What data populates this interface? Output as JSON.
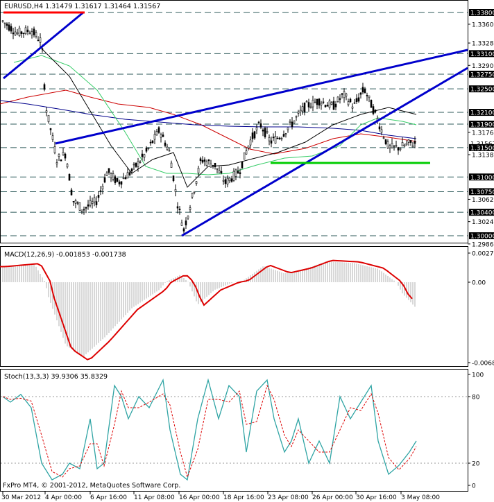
{
  "main_pane": {
    "header": "EURUSD,H4  1.31479 1.31617 1.31464 1.31567",
    "price_scale": [
      "1.33800",
      "1.33600",
      "1.33280",
      "1.33100",
      "1.32900",
      "1.32750",
      "1.32500",
      "1.32100",
      "1.31900",
      "1.31760",
      "1.31567",
      "1.31500",
      "1.31380",
      "1.31000",
      "1.30750",
      "1.30620",
      "1.30400",
      "1.30240",
      "1.30000",
      "1.29860"
    ],
    "highlighted_levels": [
      "1.33800",
      "1.33100",
      "1.32750",
      "1.32500",
      "1.32100",
      "1.31900",
      "1.31500",
      "1.31000",
      "1.30750",
      "1.30400",
      "1.30000"
    ],
    "current_price": "1.31567"
  },
  "macd_pane": {
    "header": "MACD(12,26,9) -0.001853 -0.001738",
    "scale": [
      "0.00277",
      "0.00",
      "-0.00687"
    ]
  },
  "stoch_pane": {
    "header": "Stoch(13,3,3) 39.9306 35.8329",
    "scale": [
      "100",
      "80",
      "20",
      "0"
    ]
  },
  "time_axis": [
    "30 Mar 2012",
    "4 Apr 00:00",
    "6 Apr 16:00",
    "11 Apr 08:00",
    "16 Apr 00:00",
    "18 Apr 16:00",
    "23 Apr 08:00",
    "26 Apr 00:00",
    "30 Apr 16:00",
    "3 May 08:00"
  ],
  "footer": "FxPro MT4, © 2001-2012, MetaQuotes Software Corp.",
  "colors": {
    "trendline": "#0000cc",
    "support": "#00cc00",
    "resistance": "#ff0000",
    "macd_signal": "#dd0000",
    "stoch_signal": "#dd0000",
    "stoch_main": "#2fa4a4",
    "ma_slow": "#cc0000",
    "ma_mid": "#00008b",
    "ma_fast": "#000000",
    "ma_green": "#33cc66"
  }
}
